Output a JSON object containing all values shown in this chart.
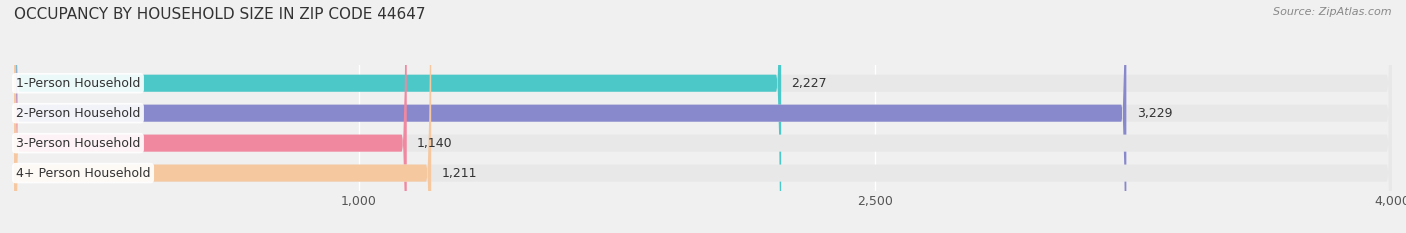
{
  "title": "OCCUPANCY BY HOUSEHOLD SIZE IN ZIP CODE 44647",
  "source": "Source: ZipAtlas.com",
  "categories": [
    "1-Person Household",
    "2-Person Household",
    "3-Person Household",
    "4+ Person Household"
  ],
  "values": [
    2227,
    3229,
    1140,
    1211
  ],
  "bar_colors": [
    "#4DC8C8",
    "#8888CC",
    "#F088A0",
    "#F5C8A0"
  ],
  "label_bg_color": "#FFFFFF",
  "xlim": [
    0,
    4000
  ],
  "xticks": [
    1000,
    2500,
    4000
  ],
  "background_color": "#F0F0F0",
  "bar_background_color": "#E8E8E8",
  "bar_height": 0.55,
  "title_fontsize": 11,
  "label_fontsize": 9,
  "value_fontsize": 9,
  "source_fontsize": 8
}
